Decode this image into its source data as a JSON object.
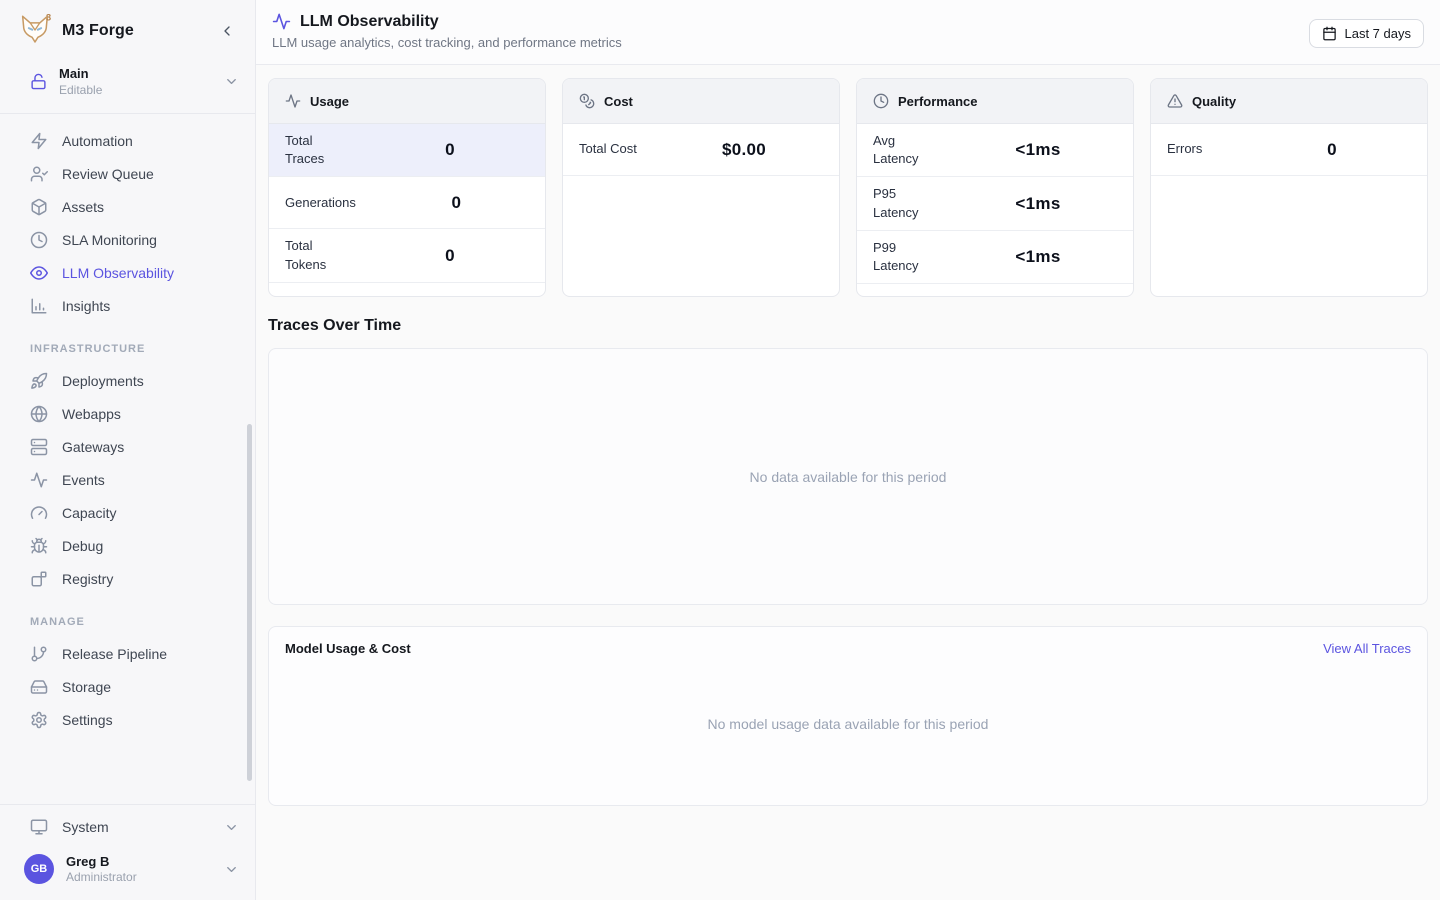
{
  "app": {
    "name": "M3 Forge"
  },
  "workspace": {
    "name": "Main",
    "status": "Editable"
  },
  "sidebar": {
    "sections": [
      {
        "label": null,
        "items": [
          {
            "label": "Automation",
            "icon": "zap",
            "active": false
          },
          {
            "label": "Review Queue",
            "icon": "user-check",
            "active": false
          },
          {
            "label": "Assets",
            "icon": "package",
            "active": false
          },
          {
            "label": "SLA Monitoring",
            "icon": "clock",
            "active": false
          },
          {
            "label": "LLM Observability",
            "icon": "eye",
            "active": true
          },
          {
            "label": "Insights",
            "icon": "bar-chart",
            "active": false
          }
        ]
      },
      {
        "label": "INFRASTRUCTURE",
        "items": [
          {
            "label": "Deployments",
            "icon": "rocket",
            "active": false
          },
          {
            "label": "Webapps",
            "icon": "globe",
            "active": false
          },
          {
            "label": "Gateways",
            "icon": "server",
            "active": false
          },
          {
            "label": "Events",
            "icon": "activity",
            "active": false
          },
          {
            "label": "Capacity",
            "icon": "gauge",
            "active": false
          },
          {
            "label": "Debug",
            "icon": "bug",
            "active": false
          },
          {
            "label": "Registry",
            "icon": "registry",
            "active": false
          }
        ]
      },
      {
        "label": "MANAGE",
        "items": [
          {
            "label": "Release Pipeline",
            "icon": "git-branch",
            "active": false
          },
          {
            "label": "Storage",
            "icon": "hard-drive",
            "active": false
          },
          {
            "label": "Settings",
            "icon": "settings",
            "active": false
          }
        ]
      }
    ],
    "system": {
      "label": "System",
      "icon": "monitor"
    },
    "user": {
      "initials": "GB",
      "name": "Greg B",
      "role": "Administrator"
    }
  },
  "header": {
    "title": "LLM Observability",
    "subtitle": "LLM usage analytics, cost tracking, and performance metrics",
    "icon": "activity",
    "date_range": "Last 7 days"
  },
  "metric_cards": [
    {
      "title": "Usage",
      "icon": "activity",
      "rows": [
        {
          "label": "Total Traces",
          "value": "0",
          "highlight": true
        },
        {
          "label": "Generations",
          "value": "0",
          "highlight": false
        },
        {
          "label": "Total Tokens",
          "value": "0",
          "highlight": false
        }
      ]
    },
    {
      "title": "Cost",
      "icon": "coins",
      "rows": [
        {
          "label": "Total Cost",
          "value": "$0.00",
          "highlight": false
        }
      ]
    },
    {
      "title": "Performance",
      "icon": "clock",
      "rows": [
        {
          "label": "Avg Latency",
          "value": "<1ms",
          "highlight": false
        },
        {
          "label": "P95 Latency",
          "value": "<1ms",
          "highlight": false
        },
        {
          "label": "P99 Latency",
          "value": "<1ms",
          "highlight": false
        }
      ]
    },
    {
      "title": "Quality",
      "icon": "alert-triangle",
      "rows": [
        {
          "label": "Errors",
          "value": "0",
          "highlight": false
        }
      ]
    }
  ],
  "traces": {
    "title": "Traces Over Time",
    "empty": "No data available for this period"
  },
  "models": {
    "title": "Model Usage & Cost",
    "link": "View All Traces",
    "empty": "No model usage data available for this period"
  },
  "colors": {
    "accent": "#5b54e0",
    "logo_stroke": "#c79a64",
    "logo_eye": "#8fb8d8",
    "highlight_row": "#edeffb"
  }
}
